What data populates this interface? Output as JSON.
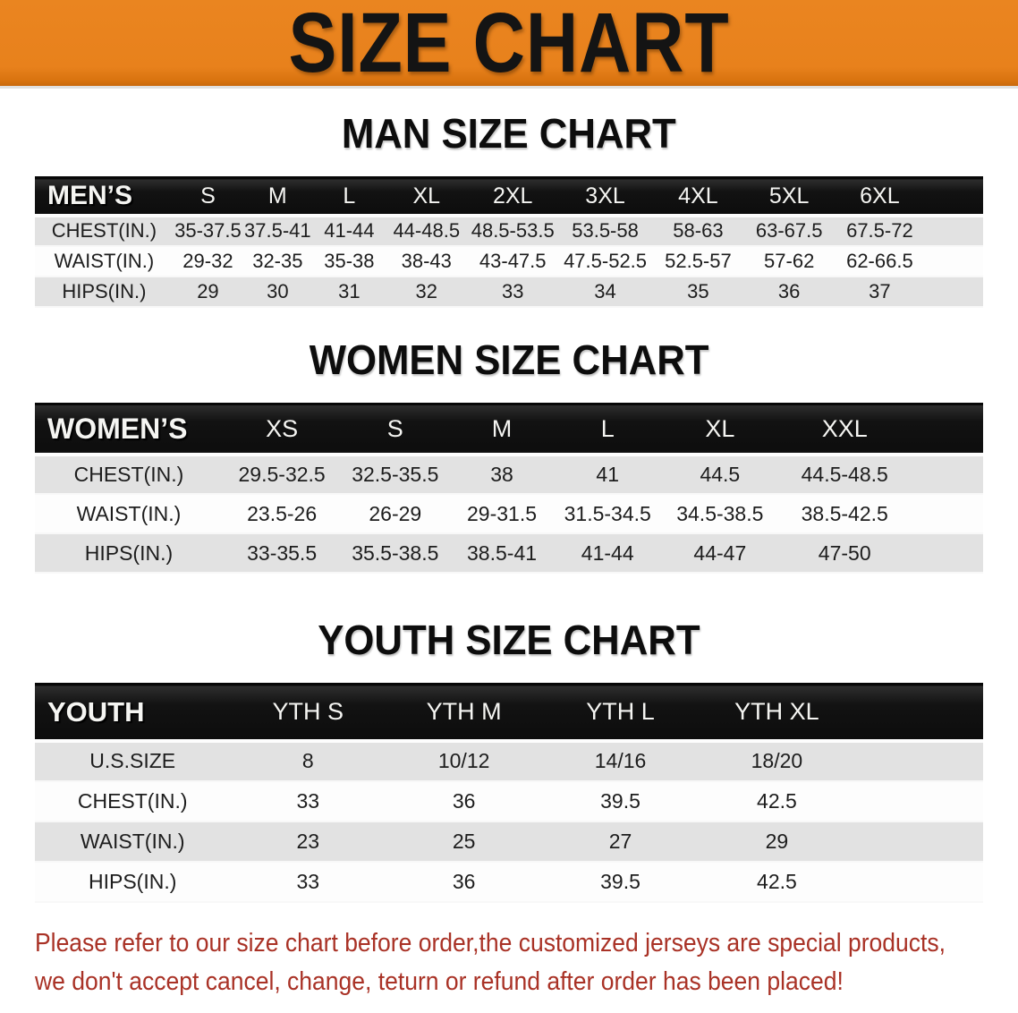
{
  "banner": {
    "title": "SIZE CHART",
    "bg_color": "#E8811C",
    "text_color": "#141414"
  },
  "sections": {
    "man": {
      "heading": "MAN SIZE CHART"
    },
    "women": {
      "heading": "WOMEN SIZE CHART"
    },
    "youth": {
      "heading": "YOUTH SIZE CHART"
    }
  },
  "tables": {
    "men": {
      "label": "MEN’S",
      "sizes": [
        "S",
        "M",
        "L",
        "XL",
        "2XL",
        "3XL",
        "4XL",
        "5XL",
        "6XL"
      ],
      "rows": [
        {
          "label": "CHEST(IN.)",
          "values": [
            "35-37.5",
            "37.5-41",
            "41-44",
            "44-48.5",
            "48.5-53.5",
            "53.5-58",
            "58-63",
            "63-67.5",
            "67.5-72"
          ]
        },
        {
          "label": "WAIST(IN.)",
          "values": [
            "29-32",
            "32-35",
            "35-38",
            "38-43",
            "43-47.5",
            "47.5-52.5",
            "52.5-57",
            "57-62",
            "62-66.5"
          ]
        },
        {
          "label": "HIPS(IN.)",
          "values": [
            "29",
            "30",
            "31",
            "32",
            "33",
            "34",
            "35",
            "36",
            "37"
          ]
        }
      ]
    },
    "women": {
      "label": "WOMEN’S",
      "sizes": [
        "XS",
        "S",
        "M",
        "L",
        "XL",
        "XXL"
      ],
      "rows": [
        {
          "label": "CHEST(IN.)",
          "values": [
            "29.5-32.5",
            "32.5-35.5",
            "38",
            "41",
            "44.5",
            "44.5-48.5"
          ]
        },
        {
          "label": "WAIST(IN.)",
          "values": [
            "23.5-26",
            "26-29",
            "29-31.5",
            "31.5-34.5",
            "34.5-38.5",
            "38.5-42.5"
          ]
        },
        {
          "label": "HIPS(IN.)",
          "values": [
            "33-35.5",
            "35.5-38.5",
            "38.5-41",
            "41-44",
            "44-47",
            "47-50"
          ]
        }
      ]
    },
    "youth": {
      "label": "YOUTH",
      "sizes": [
        "YTH S",
        "YTH M",
        "YTH L",
        "YTH XL"
      ],
      "rows": [
        {
          "label": "U.S.SIZE",
          "values": [
            "8",
            "10/12",
            "14/16",
            "18/20"
          ]
        },
        {
          "label": "CHEST(IN.)",
          "values": [
            "33",
            "36",
            "39.5",
            "42.5"
          ]
        },
        {
          "label": "WAIST(IN.)",
          "values": [
            "23",
            "25",
            "27",
            "29"
          ]
        },
        {
          "label": "HIPS(IN.)",
          "values": [
            "33",
            "36",
            "39.5",
            "42.5"
          ]
        }
      ]
    }
  },
  "disclaimer": {
    "line1": "Please refer to our size chart before order,the customized jerseys are special products,",
    "line2": "we don't accept cancel, change, teturn or refund after order has been placed!",
    "text_color": "#A93226"
  }
}
